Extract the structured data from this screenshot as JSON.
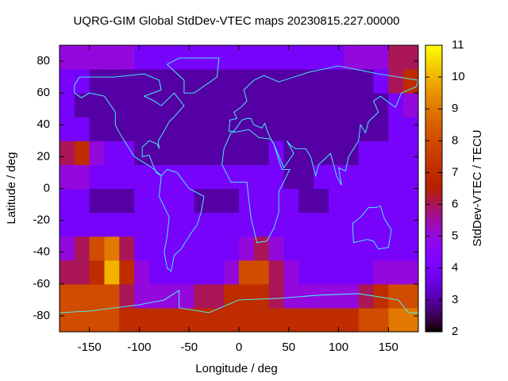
{
  "chart_data": {
    "type": "heatmap",
    "title": "UQRG-GIM Global StdDev-VTEC maps 20230815.227.00000",
    "x_label": "Longitude / deg",
    "y_label": "Latitude / deg",
    "colorbar_label": "StdDev-VTEC / TECU",
    "colormap": "gnuplot",
    "xlim": [
      -180,
      180
    ],
    "ylim": [
      -90,
      90
    ],
    "xticks": [
      -150,
      -100,
      -50,
      0,
      50,
      100,
      150
    ],
    "yticks": [
      -80,
      -60,
      -40,
      -20,
      0,
      20,
      40,
      60,
      80
    ],
    "clim": [
      2,
      11
    ],
    "cticks": [
      2,
      3,
      4,
      5,
      6,
      7,
      8,
      9,
      10,
      11
    ],
    "x": [
      -172.5,
      -157.5,
      -142.5,
      -127.5,
      -112.5,
      -97.5,
      -82.5,
      -67.5,
      -52.5,
      -37.5,
      -22.5,
      -7.5,
      7.5,
      22.5,
      37.5,
      52.5,
      67.5,
      82.5,
      97.5,
      112.5,
      127.5,
      142.5,
      157.5,
      172.5
    ],
    "y": [
      -82.5,
      -67.5,
      -52.5,
      -37.5,
      -22.5,
      -7.5,
      7.5,
      22.5,
      37.5,
      52.5,
      67.5,
      82.5
    ],
    "z": [
      [
        8,
        8,
        8,
        8,
        7,
        7,
        7,
        7,
        7,
        7,
        7,
        7,
        7,
        7,
        7,
        7,
        7,
        7,
        7,
        7,
        8,
        8,
        9,
        9
      ],
      [
        8,
        8,
        8,
        8,
        6,
        5,
        5,
        5,
        5,
        6,
        6,
        7,
        7,
        7,
        6,
        5,
        5,
        5,
        5,
        5,
        6,
        7,
        8,
        8
      ],
      [
        6,
        6,
        7,
        10,
        7,
        5,
        4,
        4,
        4,
        4,
        4,
        5,
        8,
        8,
        6,
        5,
        4,
        4,
        4,
        4,
        4,
        5,
        5,
        5
      ],
      [
        5,
        6,
        8,
        9,
        6,
        4,
        4,
        4,
        4,
        4,
        4,
        4,
        5,
        6,
        5,
        4,
        4,
        4,
        4,
        4,
        4,
        4,
        4,
        4
      ],
      [
        4,
        4,
        4,
        4,
        4,
        4,
        4,
        4,
        4,
        4,
        4,
        4,
        4,
        4,
        4,
        4,
        4,
        4,
        4,
        4,
        4,
        4,
        4,
        4
      ],
      [
        4,
        4,
        3,
        3,
        3,
        4,
        4,
        4,
        4,
        3,
        3,
        3,
        4,
        4,
        4,
        4,
        3,
        3,
        4,
        4,
        4,
        4,
        4,
        4
      ],
      [
        5,
        5,
        4,
        4,
        4,
        4,
        4,
        4,
        4,
        4,
        4,
        4,
        4,
        4,
        4,
        3,
        3,
        4,
        4,
        4,
        4,
        4,
        4,
        4
      ],
      [
        6,
        7,
        5,
        4,
        4,
        3,
        3,
        3,
        3,
        3,
        3,
        3,
        3,
        3,
        4,
        3,
        3,
        3,
        3,
        3,
        4,
        4,
        4,
        4
      ],
      [
        4,
        4,
        3,
        3,
        3,
        3,
        3,
        3,
        3,
        3,
        3,
        3,
        3,
        3,
        3,
        3,
        3,
        3,
        3,
        3,
        3,
        3,
        4,
        4
      ],
      [
        4,
        3,
        3,
        3,
        3,
        3,
        3,
        3,
        3,
        3,
        3,
        3,
        3,
        3,
        3,
        3,
        3,
        3,
        3,
        3,
        3,
        3,
        4,
        5
      ],
      [
        4,
        4,
        3,
        3,
        3,
        3,
        3,
        3,
        3,
        3,
        3,
        3,
        3,
        3,
        3,
        3,
        3,
        3,
        3,
        3,
        3,
        4,
        6,
        7
      ],
      [
        5,
        5,
        5,
        5,
        5,
        4,
        4,
        4,
        4,
        4,
        4,
        4,
        4,
        4,
        4,
        4,
        4,
        4,
        4,
        5,
        5,
        5,
        6,
        6
      ]
    ]
  }
}
